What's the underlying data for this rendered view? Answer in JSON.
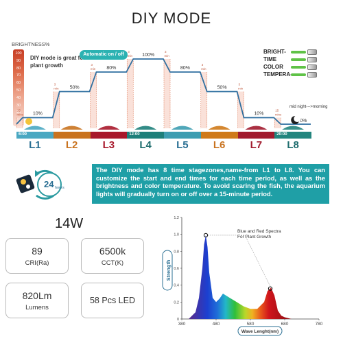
{
  "title": "DIY MODE",
  "brightness_label": "BRIGHTNESS%",
  "brightness_ticks": [
    "100",
    "90",
    "80",
    "70",
    "60",
    "50",
    "40",
    "30",
    "20",
    "10"
  ],
  "diy_note": "DIY mode is great for plant growth",
  "auto_label": "Automatic on / off",
  "ramp_label_top": "3",
  "ramp_label_bottom": "min",
  "ramp_label_15_top": "15",
  "ramp_label_15_bottom": "mins",
  "levels": [
    {
      "id": "L1",
      "percent": 10,
      "label": "10%"
    },
    {
      "id": "L2",
      "percent": 50,
      "label": "50%"
    },
    {
      "id": "L3",
      "percent": 80,
      "label": "80%"
    },
    {
      "id": "L4",
      "percent": 100,
      "label": "100%"
    },
    {
      "id": "L5",
      "percent": 80,
      "label": "80%"
    },
    {
      "id": "L6",
      "percent": 50,
      "label": "50%"
    },
    {
      "id": "L7",
      "percent": 10,
      "label": "10%"
    },
    {
      "id": "L8",
      "percent": 0,
      "label": "0%"
    }
  ],
  "legend": [
    "BRIGHT-",
    "TIME",
    "COLOR",
    "TEMPERA-"
  ],
  "midnight_label": "mid night--->morning",
  "time_labels": {
    "L1": "6:00",
    "L4": "12:00",
    "L8": "20:00"
  },
  "segment_colors": [
    "#4aa8c2",
    "#c9731f",
    "#a8182b",
    "#1d7f7a",
    "#3d9db1",
    "#cf7a19",
    "#a11a2d",
    "#23857e"
  ],
  "label_colors": [
    "#2a6f93",
    "#c9731f",
    "#a8182b",
    "#1d6c6d",
    "#2a6f93",
    "#c9731f",
    "#a11a2d",
    "#1d6c6d"
  ],
  "clock_text": "24",
  "clock_subtext": "hours",
  "description": "The DIY mode has 8 time stagezones,name-from L1 to L8. You can customize the start and end times for each time period, as well as the brightness and color temperature. To avoid scaring the fish, the aquarium lights will gradually turn on or off over a 15-minute period.",
  "power": "14W",
  "specs": [
    {
      "value": "89",
      "unit": "CRI(Ra)"
    },
    {
      "value": "6500k",
      "unit": "CCT(K)"
    },
    {
      "value": "820Lm",
      "unit": "Lumens"
    },
    {
      "value": "58 Pcs LED",
      "unit": ""
    }
  ],
  "chart_data": {
    "type": "area",
    "title": "",
    "annotation": "Blue and Red Spectra For Plant Growth",
    "xlabel": "Wave Lenght(nm)",
    "ylabel": "Strength",
    "xlim": [
      380,
      780
    ],
    "ylim": [
      0,
      1.2
    ],
    "x_ticks": [
      "380",
      "480",
      "580",
      "680",
      "780"
    ],
    "y_ticks": [
      "0",
      "0.2",
      "0.4",
      "0.6",
      "0.8",
      "1.0",
      "1.2"
    ],
    "x": [
      400,
      420,
      430,
      440,
      445,
      450,
      455,
      460,
      470,
      480,
      490,
      500,
      520,
      540,
      560,
      580,
      600,
      620,
      630,
      640,
      650,
      660,
      670,
      680,
      700
    ],
    "y": [
      0.0,
      0.08,
      0.25,
      0.6,
      0.88,
      0.99,
      0.85,
      0.55,
      0.25,
      0.2,
      0.24,
      0.3,
      0.25,
      0.2,
      0.15,
      0.12,
      0.12,
      0.2,
      0.33,
      0.37,
      0.28,
      0.1,
      0.04,
      0.02,
      0.0
    ],
    "peaks": [
      {
        "x": 450,
        "y": 0.99
      },
      {
        "x": 638,
        "y": 0.36
      }
    ]
  }
}
